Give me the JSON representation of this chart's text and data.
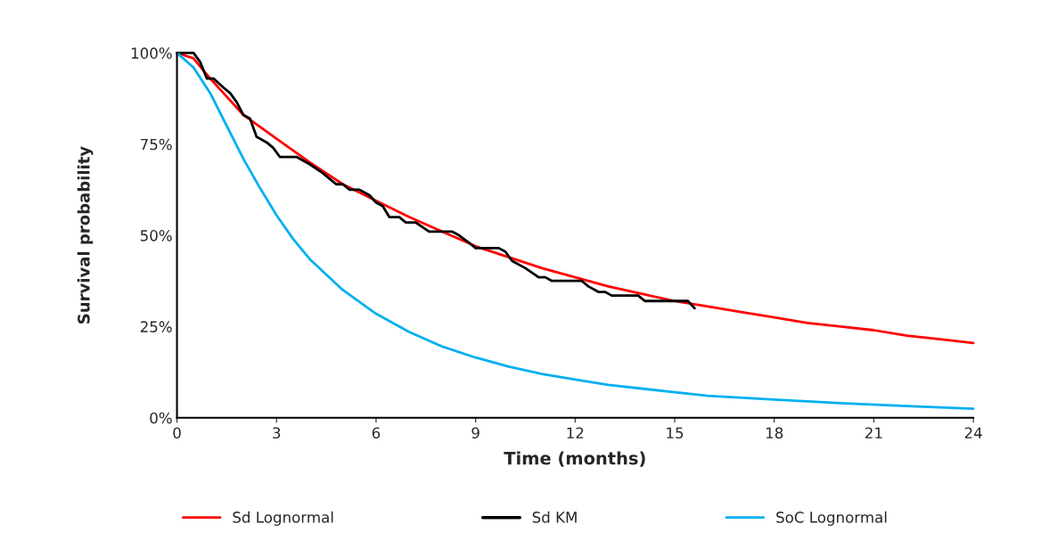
{
  "chart_data": {
    "type": "line",
    "xlabel": "Time (months)",
    "ylabel": "Survival probability",
    "xlim": [
      0,
      24
    ],
    "xticks": [
      0,
      3,
      6,
      9,
      12,
      15,
      18,
      21,
      24
    ],
    "ylim": [
      0,
      100
    ],
    "yticks": [
      {
        "value": 0,
        "label": "0%"
      },
      {
        "value": 25,
        "label": "25%"
      },
      {
        "value": 50,
        "label": "50%"
      },
      {
        "value": 75,
        "label": "75%"
      },
      {
        "value": 100,
        "label": "100%"
      }
    ],
    "grid": false,
    "legend": "bottom",
    "marker": "none",
    "line_style": "solid",
    "series": [
      {
        "name": "Sd Lognormal",
        "color": "#ff0000",
        "x": [
          0,
          0.5,
          1,
          2,
          3,
          4,
          5,
          6,
          7,
          8,
          9,
          10,
          11,
          12,
          13,
          14,
          15,
          16,
          17,
          18,
          19,
          20,
          21,
          22,
          23,
          24
        ],
        "values": [
          100,
          98.5,
          93,
          83,
          76.5,
          70,
          64,
          59.5,
          55,
          51,
          47,
          44,
          41,
          38.5,
          36,
          34,
          32,
          30.5,
          29,
          27.5,
          26,
          25,
          24,
          22.5,
          21.5,
          20.5
        ]
      },
      {
        "name": "Sd KM",
        "color": "#000000",
        "x": [
          0,
          0.5,
          0.7,
          0.9,
          1.1,
          1.4,
          1.6,
          1.8,
          2.0,
          2.2,
          2.4,
          2.7,
          2.9,
          3.1,
          3.6,
          4.0,
          4.4,
          4.6,
          4.8,
          5.0,
          5.2,
          5.5,
          5.8,
          6.0,
          6.2,
          6.4,
          6.7,
          6.9,
          7.2,
          7.6,
          8.3,
          8.5,
          8.8,
          9.0,
          9.7,
          9.9,
          10.1,
          10.5,
          10.9,
          11.1,
          11.3,
          12.2,
          12.4,
          12.7,
          12.9,
          13.1,
          13.9,
          14.1,
          15.4,
          15.6
        ],
        "values": [
          100,
          100,
          97.5,
          93,
          93,
          90.5,
          89,
          86.5,
          83,
          82,
          77,
          75.5,
          74,
          71.5,
          71.5,
          69.5,
          67,
          65.5,
          64,
          64,
          62.5,
          62.5,
          61,
          59,
          58,
          55,
          55,
          53.5,
          53.5,
          51,
          51,
          50,
          48,
          46.5,
          46.5,
          45.5,
          43,
          41,
          38.5,
          38.5,
          37.5,
          37.5,
          36,
          34.5,
          34.5,
          33.5,
          33.5,
          32,
          32,
          30
        ]
      },
      {
        "name": "SoC Lognormal",
        "color": "#00b0f0",
        "x": [
          0,
          0.5,
          1,
          1.5,
          2,
          2.5,
          3,
          3.5,
          4,
          5,
          6,
          7,
          8,
          9,
          10,
          11,
          12,
          13,
          14,
          15,
          16,
          18,
          20,
          22,
          24
        ],
        "values": [
          100,
          96,
          89,
          80,
          71,
          63,
          55.5,
          49,
          43.5,
          35,
          28.5,
          23.5,
          19.5,
          16.5,
          14,
          12,
          10.5,
          9,
          8,
          7,
          6,
          5,
          4,
          3.2,
          2.5
        ]
      }
    ]
  }
}
